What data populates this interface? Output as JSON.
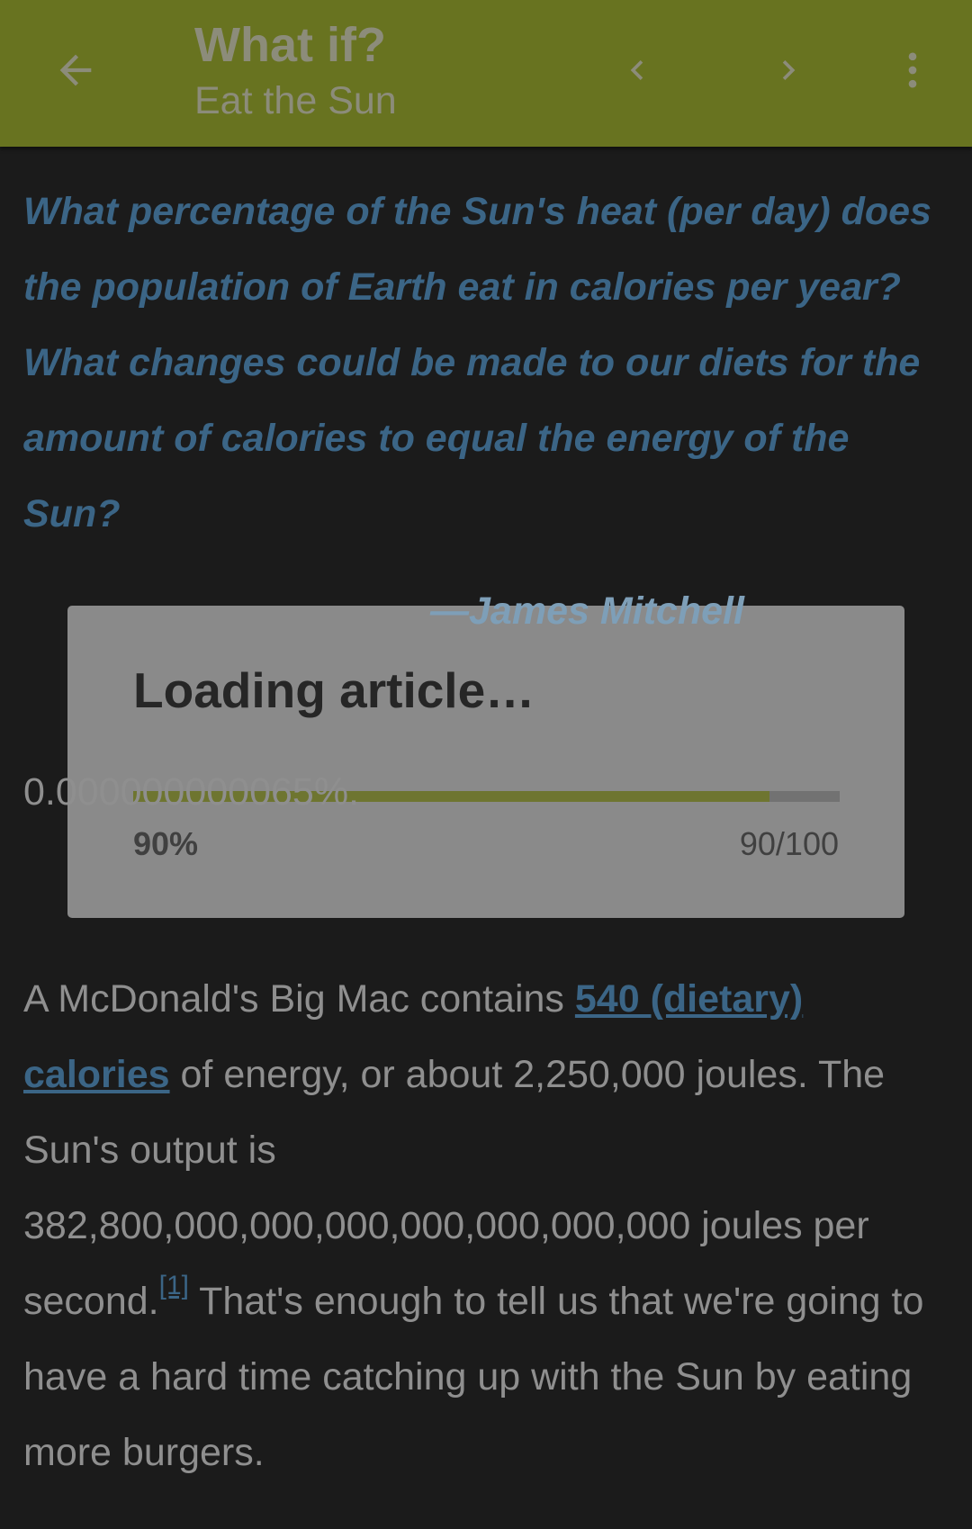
{
  "appbar": {
    "title": "What if?",
    "subtitle": "Eat the Sun",
    "back_icon": "arrow-left-icon",
    "prev_icon": "chevron-left-icon",
    "next_icon": "chevron-right-icon",
    "more_icon": "more-vert-icon"
  },
  "article": {
    "question": "What percentage of the Sun's heat (per day) does the population of Earth eat in calories per year? What changes could be made to our diets for the amount of calories to equal the energy of the Sun?",
    "attribution": "—James Mitchell",
    "answer": "0.000000000065%.",
    "para_start": "A McDonald's Big Mac contains ",
    "link_text": "540 (dietary) calories",
    "para_mid": " of energy, or about 2,250,000 joules. The Sun's output is 382,800,000,000,000,000,000,000,000 joules per second.",
    "footnote": "[1]",
    "para_end": " That's enough to tell us that we're going to have a hard time catching up with the Sun by eating more burgers."
  },
  "dialog": {
    "title": "Loading article…",
    "progress_fraction": 0.9,
    "percent_label": "90%",
    "count_label": "90/100"
  },
  "colors": {
    "appbar": "#687320",
    "accent_link": "#3b6586",
    "progress_fill": "#6e7530",
    "dialog_bg": "#8a8a8a"
  }
}
